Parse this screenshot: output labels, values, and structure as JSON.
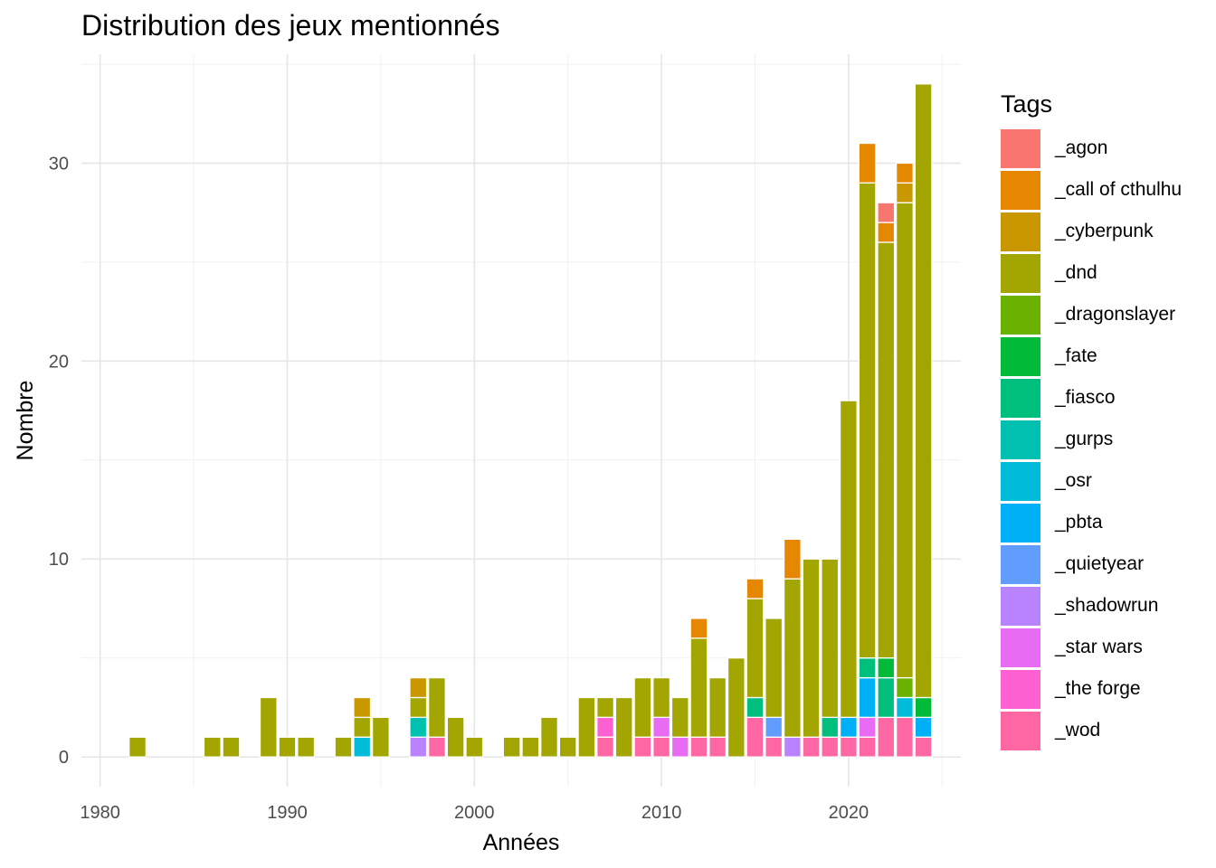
{
  "chart_data": {
    "type": "bar",
    "stacked": true,
    "title": "Distribution des jeux mentionnés",
    "xlabel": "Années",
    "ylabel": "Nombre",
    "xlim": [
      1979,
      2026
    ],
    "ylim": [
      -1.5,
      35.5
    ],
    "xticks": [
      1980,
      1990,
      2000,
      2010,
      2020
    ],
    "yticks": [
      0,
      10,
      20,
      30
    ],
    "grid": true,
    "legend_title": "Tags",
    "legend_position": "right",
    "series": [
      {
        "name": "_agon",
        "color": "#F8766D",
        "points": [
          [
            2022,
            1
          ]
        ]
      },
      {
        "name": "_call of cthulhu",
        "color": "#E58700",
        "points": [
          [
            2012,
            1
          ],
          [
            2015,
            1
          ],
          [
            2017,
            2
          ],
          [
            2021,
            2
          ],
          [
            2022,
            1
          ],
          [
            2023,
            1
          ]
        ]
      },
      {
        "name": "_cyberpunk",
        "color": "#C99800",
        "points": [
          [
            1994,
            1
          ],
          [
            1997,
            1
          ],
          [
            2023,
            1
          ]
        ]
      },
      {
        "name": "_dnd",
        "color": "#A3A500",
        "points": [
          [
            1982,
            1
          ],
          [
            1986,
            1
          ],
          [
            1987,
            1
          ],
          [
            1989,
            3
          ],
          [
            1990,
            1
          ],
          [
            1991,
            1
          ],
          [
            1993,
            1
          ],
          [
            1994,
            1
          ],
          [
            1995,
            2
          ],
          [
            1997,
            1
          ],
          [
            1998,
            3
          ],
          [
            1999,
            2
          ],
          [
            2000,
            1
          ],
          [
            2002,
            1
          ],
          [
            2003,
            1
          ],
          [
            2004,
            2
          ],
          [
            2005,
            1
          ],
          [
            2006,
            3
          ],
          [
            2007,
            1
          ],
          [
            2008,
            3
          ],
          [
            2009,
            3
          ],
          [
            2010,
            2
          ],
          [
            2011,
            2
          ],
          [
            2012,
            5
          ],
          [
            2013,
            3
          ],
          [
            2014,
            5
          ],
          [
            2015,
            5
          ],
          [
            2016,
            5
          ],
          [
            2017,
            8
          ],
          [
            2018,
            9
          ],
          [
            2019,
            8
          ],
          [
            2020,
            16
          ],
          [
            2021,
            24
          ],
          [
            2022,
            21
          ],
          [
            2023,
            24
          ],
          [
            2024,
            31
          ]
        ]
      },
      {
        "name": "_dragonslayer",
        "color": "#6BB100",
        "points": [
          [
            2023,
            1
          ]
        ]
      },
      {
        "name": "_fate",
        "color": "#00BA38",
        "points": [
          [
            2022,
            1
          ],
          [
            2024,
            1
          ]
        ]
      },
      {
        "name": "_fiasco",
        "color": "#00BF7D",
        "points": [
          [
            2015,
            1
          ],
          [
            2019,
            1
          ],
          [
            2021,
            1
          ],
          [
            2022,
            2
          ]
        ]
      },
      {
        "name": "_gurps",
        "color": "#00C0AF",
        "points": [
          [
            1997,
            1
          ]
        ]
      },
      {
        "name": "_osr",
        "color": "#00BCD8",
        "points": [
          [
            1994,
            1
          ],
          [
            2023,
            1
          ]
        ]
      },
      {
        "name": "_pbta",
        "color": "#00B0F6",
        "points": [
          [
            2020,
            1
          ],
          [
            2021,
            2
          ],
          [
            2024,
            1
          ]
        ]
      },
      {
        "name": "_quietyear",
        "color": "#619CFF",
        "points": [
          [
            2016,
            1
          ]
        ]
      },
      {
        "name": "_shadowrun",
        "color": "#B983FF",
        "points": [
          [
            1997,
            1
          ],
          [
            2017,
            1
          ]
        ]
      },
      {
        "name": "_star wars",
        "color": "#E76BF3",
        "points": [
          [
            2010,
            1
          ],
          [
            2011,
            1
          ],
          [
            2021,
            1
          ]
        ]
      },
      {
        "name": "_the forge",
        "color": "#FD61D1",
        "points": [
          [
            2007,
            1
          ]
        ]
      },
      {
        "name": "_wod",
        "color": "#FF67A4",
        "points": [
          [
            1998,
            1
          ],
          [
            2007,
            1
          ],
          [
            2009,
            1
          ],
          [
            2010,
            1
          ],
          [
            2012,
            1
          ],
          [
            2013,
            1
          ],
          [
            2015,
            2
          ],
          [
            2016,
            1
          ],
          [
            2018,
            1
          ],
          [
            2019,
            1
          ],
          [
            2020,
            1
          ],
          [
            2021,
            1
          ],
          [
            2022,
            2
          ],
          [
            2023,
            2
          ],
          [
            2024,
            1
          ]
        ]
      }
    ]
  }
}
